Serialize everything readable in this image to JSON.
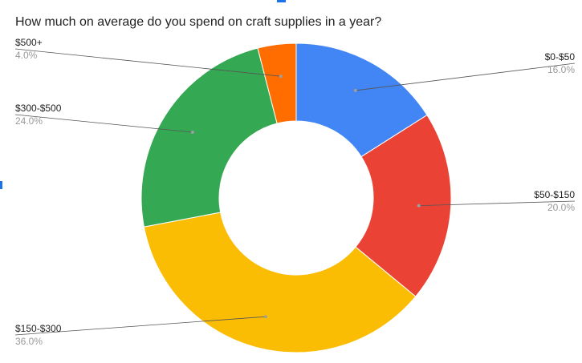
{
  "chart_data": {
    "type": "pie",
    "donut": true,
    "title": "How much on average do you spend on craft supplies in a year?",
    "slices": [
      {
        "label": "$0-$50",
        "value": 16.0,
        "percent_label": "16.0%",
        "color": "#4285F4"
      },
      {
        "label": "$50-$150",
        "value": 20.0,
        "percent_label": "20.0%",
        "color": "#EA4335"
      },
      {
        "label": "$150-$300",
        "value": 36.0,
        "percent_label": "36.0%",
        "color": "#FBBC04"
      },
      {
        "label": "$300-$500",
        "value": 24.0,
        "percent_label": "24.0%",
        "color": "#34A853"
      },
      {
        "label": "$500+",
        "value": 4.0,
        "percent_label": "4.0%",
        "color": "#FF6D01"
      }
    ],
    "legend": "none",
    "data_labels": "outside-with-leader-lines"
  }
}
